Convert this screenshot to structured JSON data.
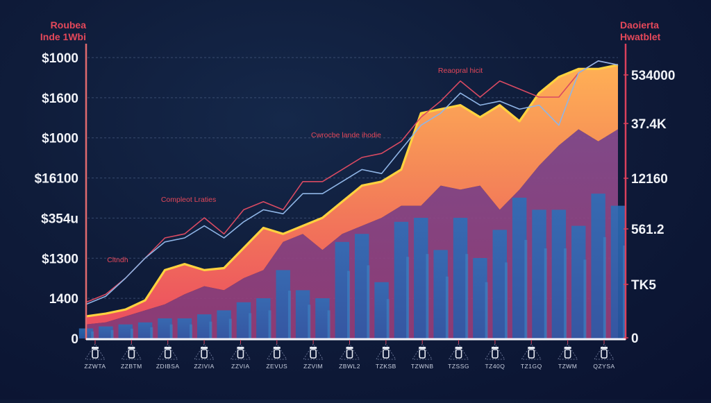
{
  "chart_data": {
    "type": "line",
    "title": "",
    "left_axis": {
      "title_lines": [
        "Roubea",
        "Inde 1Wbi"
      ],
      "tick_labels": [
        "$1000",
        "$1600",
        "$1000",
        "$16100",
        "$354u",
        "$1300",
        "1400",
        "0"
      ],
      "range": [
        0,
        7
      ]
    },
    "right_axis": {
      "title_lines": [
        "Daoierta",
        "Hwatblet"
      ],
      "tick_labels": [
        "534000",
        "37.4K",
        "12160",
        "561.2",
        "TK5",
        "0"
      ],
      "range": [
        0,
        7
      ]
    },
    "annotations": [
      {
        "text": "Reaopral hicit",
        "x": 9.5,
        "y": 6.6
      },
      {
        "text": "Cwrocbe lande ihodie",
        "x": 6.6,
        "y": 5.0
      },
      {
        "text": "Compleot Lraties",
        "x": 2.6,
        "y": 3.4
      },
      {
        "text": "Cltndh",
        "x": 0.8,
        "y": 1.9
      }
    ],
    "x": [
      0,
      0.5,
      1,
      1.5,
      2,
      2.5,
      3,
      3.5,
      4,
      4.5,
      5,
      5.5,
      6,
      6.5,
      7,
      7.5,
      8,
      8.5,
      9,
      9.5,
      10,
      10.5,
      11,
      11.5,
      12,
      12.5,
      13,
      13.5
    ],
    "categories": [
      "ZZWTA",
      "ZZBTM",
      "ZDIBSA",
      "ZZIVIA",
      "ZZVIA",
      "ZEVUS",
      "ZZVIM",
      "ZBWL2",
      "TZKSB",
      "TZWNB",
      "TZSSG",
      "TZ40Q",
      "TZ1GQ",
      "TZWM",
      "QZYSA"
    ],
    "series": [
      {
        "name": "Red line",
        "color": "#d94a62",
        "values": [
          0.9,
          1.1,
          1.5,
          2.0,
          2.5,
          2.6,
          3.0,
          2.6,
          3.2,
          3.4,
          3.2,
          3.9,
          3.9,
          4.2,
          4.5,
          4.6,
          4.9,
          5.5,
          5.9,
          6.4,
          6.0,
          6.4,
          6.2,
          6.0,
          6.0,
          6.6,
          6.9,
          6.8
        ]
      },
      {
        "name": "Blue line",
        "color": "#8fb5e6",
        "values": [
          0.85,
          1.05,
          1.5,
          2.0,
          2.4,
          2.5,
          2.8,
          2.5,
          2.9,
          3.2,
          3.1,
          3.6,
          3.6,
          3.9,
          4.2,
          4.1,
          4.7,
          5.3,
          5.6,
          6.1,
          5.8,
          5.9,
          5.7,
          5.8,
          5.3,
          6.6,
          6.9,
          6.8
        ]
      },
      {
        "name": "Orange area",
        "color": "#f08a50",
        "values": [
          0.55,
          0.62,
          0.72,
          0.95,
          1.7,
          1.85,
          1.7,
          1.75,
          2.25,
          2.75,
          2.6,
          2.8,
          3.0,
          3.4,
          3.8,
          3.9,
          4.2,
          5.6,
          5.7,
          5.8,
          5.5,
          5.8,
          5.4,
          6.1,
          6.5,
          6.7,
          6.7,
          6.8
        ]
      },
      {
        "name": "Purple area",
        "color": "#8a4a8a",
        "values": [
          0.35,
          0.4,
          0.55,
          0.7,
          0.85,
          1.1,
          1.3,
          1.2,
          1.5,
          1.7,
          2.4,
          2.6,
          2.2,
          2.6,
          2.8,
          3.0,
          3.3,
          3.3,
          3.8,
          3.7,
          3.8,
          3.2,
          3.7,
          4.3,
          4.8,
          5.2,
          4.9,
          5.2
        ]
      },
      {
        "name": "Blue bars",
        "color": "#2f64b0",
        "values": [
          0.25,
          0.3,
          0.35,
          0.4,
          0.5,
          0.5,
          0.6,
          0.7,
          0.9,
          1.0,
          1.7,
          1.2,
          1.0,
          2.4,
          2.6,
          1.4,
          2.9,
          3.0,
          2.2,
          3.0,
          2.0,
          2.7,
          3.5,
          3.2,
          3.2,
          2.8,
          3.6,
          3.3
        ]
      }
    ],
    "grid": true,
    "legend": "none"
  }
}
